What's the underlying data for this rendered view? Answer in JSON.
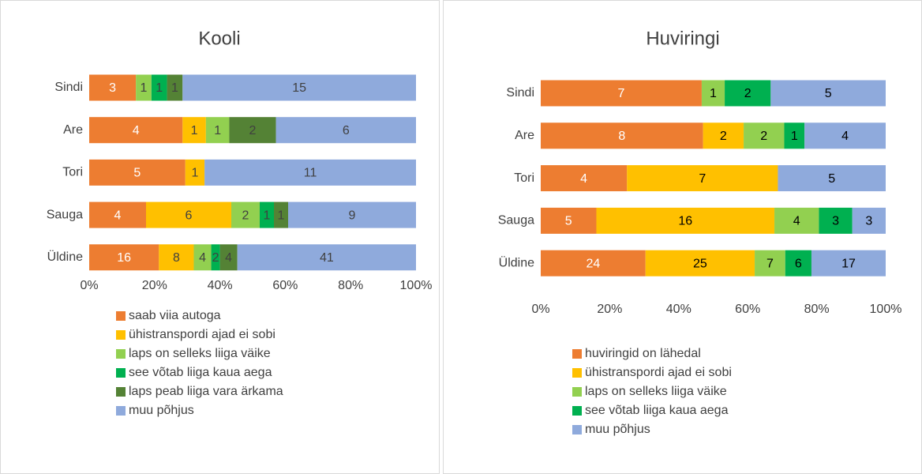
{
  "chart_data": [
    {
      "type": "bar",
      "orientation": "horizontal",
      "stacking": "percent",
      "title": "Kooli",
      "categories": [
        "Sindi",
        "Are",
        "Tori",
        "Sauga",
        "Üldine"
      ],
      "series": [
        {
          "name": "saab viia autoga",
          "color": "#ed7d31",
          "values": [
            3,
            4,
            5,
            4,
            16
          ]
        },
        {
          "name": "ühistranspordi ajad ei sobi",
          "color": "#ffc000",
          "values": [
            null,
            1,
            1,
            6,
            8
          ]
        },
        {
          "name": "laps on selleks liiga väike",
          "color": "#92d050",
          "values": [
            1,
            1,
            null,
            2,
            4
          ]
        },
        {
          "name": "see võtab liiga kaua aega",
          "color": "#00b050",
          "values": [
            1,
            null,
            null,
            1,
            2
          ]
        },
        {
          "name": "laps peab liiga vara ärkama",
          "color": "#548235",
          "values": [
            1,
            2,
            null,
            1,
            4
          ]
        },
        {
          "name": "muu põhjus",
          "color": "#8faadc",
          "values": [
            15,
            6,
            11,
            9,
            41
          ]
        }
      ],
      "xlim": [
        0,
        100
      ],
      "xticks": [
        {
          "value": 0,
          "label": "0%"
        },
        {
          "value": 20,
          "label": "20%"
        },
        {
          "value": 40,
          "label": "40%"
        },
        {
          "value": 60,
          "label": "60%"
        },
        {
          "value": 80,
          "label": "80%"
        },
        {
          "value": 100,
          "label": "100%"
        }
      ],
      "grid": false,
      "legend": "bottom"
    },
    {
      "type": "bar",
      "orientation": "horizontal",
      "stacking": "percent",
      "title": "Huviringi",
      "categories": [
        "Sindi",
        "Are",
        "Tori",
        "Sauga",
        "Üldine"
      ],
      "series": [
        {
          "name": "huviringid on lähedal",
          "color": "#ed7d31",
          "values": [
            7,
            8,
            4,
            5,
            24
          ]
        },
        {
          "name": "ühistranspordi ajad ei sobi",
          "color": "#ffc000",
          "values": [
            null,
            2,
            7,
            16,
            25
          ]
        },
        {
          "name": "laps on selleks liiga väike",
          "color": "#92d050",
          "values": [
            1,
            2,
            null,
            4,
            7
          ]
        },
        {
          "name": "see võtab liiga kaua aega",
          "color": "#00b050",
          "values": [
            2,
            1,
            null,
            3,
            6
          ]
        },
        {
          "name": "muu põhjus",
          "color": "#8faadc",
          "values": [
            5,
            4,
            5,
            3,
            17
          ]
        }
      ],
      "xlim": [
        0,
        100
      ],
      "xticks": [
        {
          "value": 0,
          "label": "0%"
        },
        {
          "value": 20,
          "label": "20%"
        },
        {
          "value": 40,
          "label": "40%"
        },
        {
          "value": 60,
          "label": "60%"
        },
        {
          "value": 80,
          "label": "80%"
        },
        {
          "value": 100,
          "label": "100%"
        }
      ],
      "grid": false,
      "legend": "bottom"
    }
  ]
}
